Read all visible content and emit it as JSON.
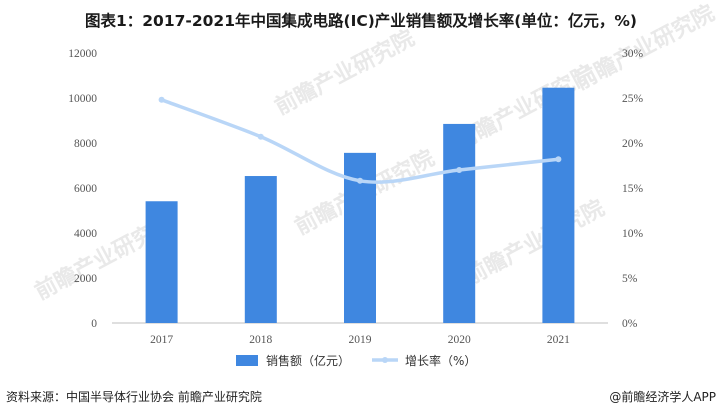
{
  "title": "图表1：2017-2021年中国集成电路(IC)产业销售额及增长率(单位：亿元，%)",
  "source_text": "资料来源：中国半导体行业协会 前瞻产业研究院",
  "brand_text": "@前瞻经济学人APP",
  "watermark_text": "前瞻产业研究院",
  "colors": {
    "bar": "#3f87e0",
    "line": "#b9d6f7",
    "axis": "#bfbfbf"
  },
  "chart_data": {
    "type": "bar",
    "categories": [
      "2017",
      "2018",
      "2019",
      "2020",
      "2021"
    ],
    "series": [
      {
        "name": "销售额（亿元）",
        "type": "bar",
        "axis": "left",
        "values": [
          5411,
          6532,
          7562,
          8848,
          10458
        ]
      },
      {
        "name": "增长率（%）",
        "type": "line",
        "axis": "right",
        "smooth": true,
        "values": [
          24.8,
          20.7,
          15.8,
          17.0,
          18.2
        ]
      }
    ],
    "y_left": {
      "min": 0,
      "max": 12000,
      "ticks": [
        "0",
        "2000",
        "4000",
        "6000",
        "8000",
        "10000",
        "12000"
      ]
    },
    "y_right": {
      "min": 0,
      "max": 30,
      "ticks": [
        "0%",
        "5%",
        "10%",
        "15%",
        "20%",
        "25%",
        "30%"
      ]
    },
    "legend_position": "bottom-center",
    "grid": false
  }
}
